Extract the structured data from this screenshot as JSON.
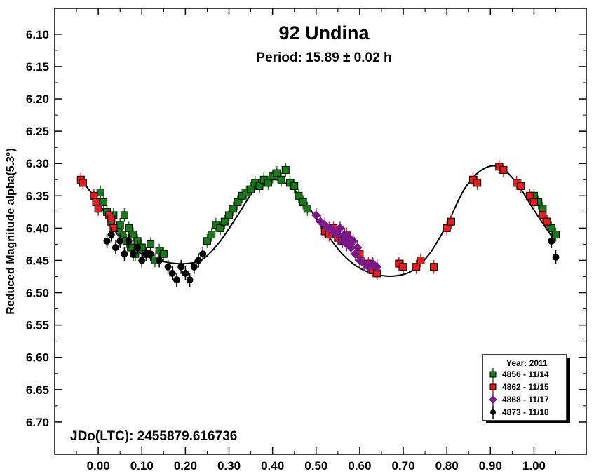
{
  "chart_data": {
    "type": "scatter",
    "title": "92 Undina",
    "subtitle": "Period: 15.89 ± 0.02 h",
    "ylabel": "Reduced Magnitude alpha(5.3°)",
    "xlabel": "",
    "annotation": "JDo(LTC): 2455879.616736",
    "xlim": [
      -0.1,
      1.12
    ],
    "ylim": [
      6.75,
      6.06
    ],
    "y_inverted": true,
    "grid": false,
    "legend_position": "bottom-right",
    "legend_title": "Year: 2011",
    "x_ticks": [
      "0.00",
      "0.10",
      "0.20",
      "0.30",
      "0.40",
      "0.50",
      "0.60",
      "0.70",
      "0.80",
      "0.90",
      "1.00"
    ],
    "y_ticks": [
      "6.10",
      "6.15",
      "6.20",
      "6.25",
      "6.30",
      "6.35",
      "6.40",
      "6.45",
      "6.50",
      "6.55",
      "6.60",
      "6.65",
      "6.70"
    ],
    "fit_curve": [
      [
        -0.04,
        6.325
      ],
      [
        0.0,
        6.36
      ],
      [
        0.05,
        6.415
      ],
      [
        0.1,
        6.44
      ],
      [
        0.15,
        6.452
      ],
      [
        0.2,
        6.455
      ],
      [
        0.24,
        6.448
      ],
      [
        0.28,
        6.42
      ],
      [
        0.32,
        6.38
      ],
      [
        0.36,
        6.34
      ],
      [
        0.4,
        6.325
      ],
      [
        0.44,
        6.335
      ],
      [
        0.48,
        6.365
      ],
      [
        0.52,
        6.405
      ],
      [
        0.56,
        6.44
      ],
      [
        0.6,
        6.462
      ],
      [
        0.64,
        6.472
      ],
      [
        0.68,
        6.474
      ],
      [
        0.72,
        6.466
      ],
      [
        0.76,
        6.44
      ],
      [
        0.8,
        6.395
      ],
      [
        0.84,
        6.34
      ],
      [
        0.88,
        6.31
      ],
      [
        0.92,
        6.305
      ],
      [
        0.96,
        6.33
      ],
      [
        1.0,
        6.372
      ],
      [
        1.04,
        6.412
      ],
      [
        1.05,
        6.42
      ]
    ],
    "series": [
      {
        "name": "4856 - 11/14",
        "color": "#1a7a1a",
        "marker": "square",
        "points": [
          [
            0.005,
            6.345
          ],
          [
            0.012,
            6.36
          ],
          [
            0.02,
            6.375
          ],
          [
            0.03,
            6.39
          ],
          [
            0.035,
            6.38
          ],
          [
            0.045,
            6.4
          ],
          [
            0.05,
            6.395
          ],
          [
            0.055,
            6.41
          ],
          [
            0.06,
            6.38
          ],
          [
            0.065,
            6.42
          ],
          [
            0.07,
            6.4
          ],
          [
            0.075,
            6.43
          ],
          [
            0.08,
            6.41
          ],
          [
            0.085,
            6.44
          ],
          [
            0.09,
            6.42
          ],
          [
            0.1,
            6.43
          ],
          [
            0.11,
            6.44
          ],
          [
            0.12,
            6.425
          ],
          [
            0.13,
            6.45
          ],
          [
            0.14,
            6.435
          ],
          [
            0.15,
            6.44
          ],
          [
            0.25,
            6.42
          ],
          [
            0.26,
            6.41
          ],
          [
            0.27,
            6.395
          ],
          [
            0.28,
            6.4
          ],
          [
            0.29,
            6.39
          ],
          [
            0.3,
            6.38
          ],
          [
            0.31,
            6.37
          ],
          [
            0.32,
            6.36
          ],
          [
            0.33,
            6.35
          ],
          [
            0.34,
            6.345
          ],
          [
            0.35,
            6.34
          ],
          [
            0.36,
            6.33
          ],
          [
            0.37,
            6.335
          ],
          [
            0.38,
            6.325
          ],
          [
            0.39,
            6.33
          ],
          [
            0.4,
            6.32
          ],
          [
            0.41,
            6.315
          ],
          [
            0.42,
            6.325
          ],
          [
            0.43,
            6.31
          ],
          [
            0.44,
            6.33
          ],
          [
            0.45,
            6.335
          ],
          [
            0.46,
            6.35
          ],
          [
            0.47,
            6.36
          ],
          [
            0.48,
            6.37
          ],
          [
            1.0,
            6.35
          ],
          [
            1.01,
            6.36
          ],
          [
            1.02,
            6.37
          ],
          [
            1.03,
            6.39
          ],
          [
            1.04,
            6.4
          ],
          [
            1.05,
            6.41
          ]
        ]
      },
      {
        "name": "4862 - 11/15",
        "color": "#e02020",
        "marker": "square",
        "points": [
          [
            -0.04,
            6.325
          ],
          [
            -0.035,
            6.33
          ],
          [
            -0.01,
            6.35
          ],
          [
            -0.005,
            6.36
          ],
          [
            0.0,
            6.37
          ],
          [
            0.025,
            6.38
          ],
          [
            0.03,
            6.385
          ],
          [
            0.035,
            6.4
          ],
          [
            0.52,
            6.405
          ],
          [
            0.53,
            6.41
          ],
          [
            0.54,
            6.4
          ],
          [
            0.55,
            6.415
          ],
          [
            0.56,
            6.42
          ],
          [
            0.57,
            6.41
          ],
          [
            0.58,
            6.42
          ],
          [
            0.6,
            6.44
          ],
          [
            0.62,
            6.455
          ],
          [
            0.63,
            6.465
          ],
          [
            0.64,
            6.47
          ],
          [
            0.69,
            6.455
          ],
          [
            0.7,
            6.46
          ],
          [
            0.73,
            6.46
          ],
          [
            0.74,
            6.45
          ],
          [
            0.77,
            6.46
          ],
          [
            0.8,
            6.4
          ],
          [
            0.81,
            6.39
          ],
          [
            0.86,
            6.325
          ],
          [
            0.87,
            6.33
          ],
          [
            0.92,
            6.305
          ],
          [
            0.93,
            6.31
          ],
          [
            0.96,
            6.33
          ],
          [
            0.97,
            6.335
          ],
          [
            0.99,
            6.35
          ],
          [
            1.0,
            6.36
          ],
          [
            1.02,
            6.38
          ],
          [
            1.03,
            6.39
          ]
        ]
      },
      {
        "name": "4868 - 11/17",
        "color": "#7a1a8a",
        "marker": "diamond",
        "points": [
          [
            0.5,
            6.38
          ],
          [
            0.51,
            6.39
          ],
          [
            0.52,
            6.395
          ],
          [
            0.53,
            6.4
          ],
          [
            0.54,
            6.405
          ],
          [
            0.55,
            6.41
          ],
          [
            0.555,
            6.4
          ],
          [
            0.56,
            6.42
          ],
          [
            0.565,
            6.41
          ],
          [
            0.57,
            6.425
          ],
          [
            0.575,
            6.415
          ],
          [
            0.58,
            6.43
          ],
          [
            0.585,
            6.42
          ],
          [
            0.59,
            6.44
          ],
          [
            0.595,
            6.43
          ],
          [
            0.6,
            6.45
          ],
          [
            0.61,
            6.455
          ],
          [
            0.62,
            6.46
          ],
          [
            0.63,
            6.455
          ],
          [
            0.64,
            6.46
          ]
        ]
      },
      {
        "name": "4873 - 11/18",
        "color": "#000000",
        "marker": "circle",
        "points": [
          [
            0.02,
            6.42
          ],
          [
            0.03,
            6.41
          ],
          [
            0.04,
            6.43
          ],
          [
            0.05,
            6.42
          ],
          [
            0.06,
            6.44
          ],
          [
            0.07,
            6.42
          ],
          [
            0.08,
            6.44
          ],
          [
            0.09,
            6.43
          ],
          [
            0.1,
            6.45
          ],
          [
            0.11,
            6.44
          ],
          [
            0.12,
            6.44
          ],
          [
            0.14,
            6.45
          ],
          [
            0.16,
            6.46
          ],
          [
            0.17,
            6.47
          ],
          [
            0.18,
            6.48
          ],
          [
            0.19,
            6.46
          ],
          [
            0.2,
            6.47
          ],
          [
            0.21,
            6.48
          ],
          [
            0.22,
            6.46
          ],
          [
            0.23,
            6.45
          ],
          [
            0.24,
            6.44
          ],
          [
            1.04,
            6.42
          ],
          [
            1.05,
            6.445
          ]
        ]
      }
    ]
  }
}
